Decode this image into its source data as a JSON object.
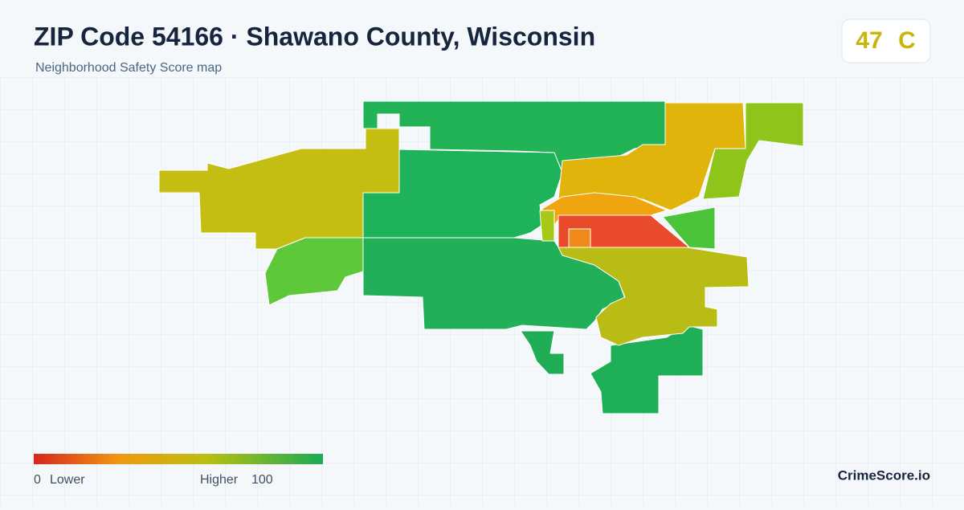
{
  "header": {
    "title": "ZIP Code 54166 · Shawano County, Wisconsin",
    "subtitle": "Neighborhood Safety Score map"
  },
  "badge": {
    "score": 47,
    "grade": "C"
  },
  "legend": {
    "min": 0,
    "min_label": "Lower",
    "max_label": "Higher",
    "max": 100
  },
  "brand": "CrimeScore.io"
}
